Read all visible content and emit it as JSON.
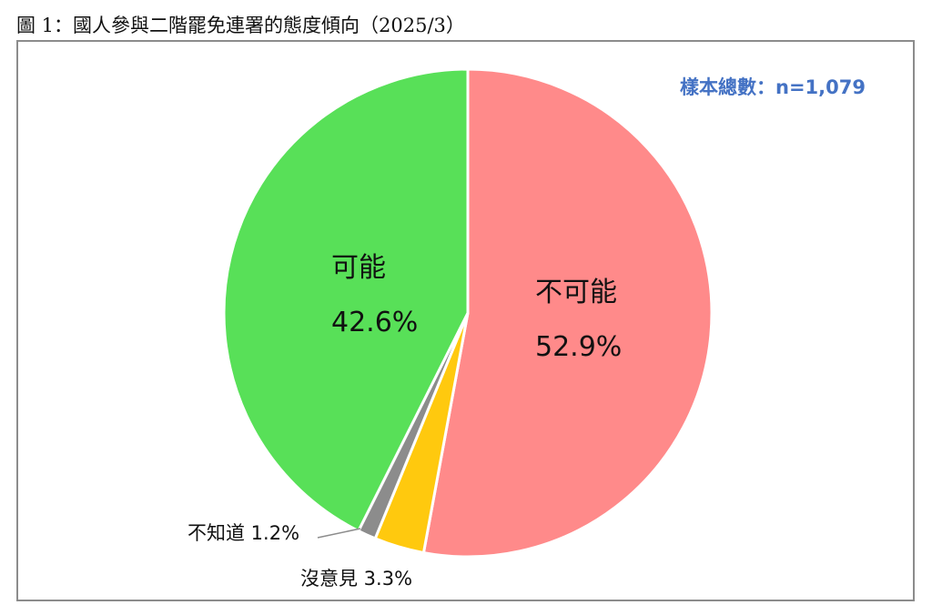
{
  "caption": "圖 1：國人參與二階罷免連署的態度傾向（2025/3）",
  "sample_label": "樣本總數：n=1,079",
  "chart_data": {
    "type": "pie",
    "title": "圖 1：國人參與二階罷免連署的態度傾向（2025/3）",
    "annotation": "樣本總數：n=1,079",
    "slices": [
      {
        "name": "不可能",
        "value": 52.9,
        "display": "52.9%",
        "color": "#ff8a8a"
      },
      {
        "name": "沒意見",
        "value": 3.3,
        "display": "3.3%",
        "color": "#ffc90e"
      },
      {
        "name": "不知道",
        "value": 1.2,
        "display": "1.2%",
        "color": "#8c8c8c"
      },
      {
        "name": "可能",
        "value": 42.6,
        "display": "42.6%",
        "color": "#58e058"
      }
    ],
    "outer_labels": {
      "不知道": "不知道 1.2%",
      "沒意見": "沒意見 3.3%"
    }
  }
}
